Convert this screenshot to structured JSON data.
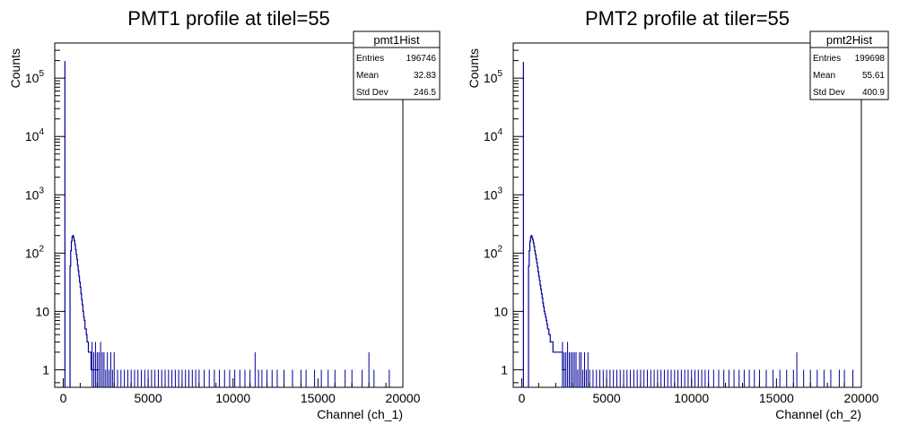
{
  "chart_data": [
    {
      "type": "bar",
      "title": "PMT1 profile at tilel=55",
      "xlabel": "Channel (ch_1)",
      "ylabel": "Counts",
      "xlim": [
        -500,
        20000
      ],
      "ylim": [
        0.5,
        400000
      ],
      "yscale": "log",
      "grid": false,
      "x_ticks": [
        "0",
        "5000",
        "10000",
        "15000",
        "20000"
      ],
      "y_ticks": [
        {
          "base": "1",
          "exp": ""
        },
        {
          "base": "10",
          "exp": ""
        },
        {
          "base": "10",
          "exp": "2"
        },
        {
          "base": "10",
          "exp": "3"
        },
        {
          "base": "10",
          "exp": "4"
        },
        {
          "base": "10",
          "exp": "5"
        }
      ],
      "line_color": "#000099",
      "stats_box": {
        "name": "pmt1Hist",
        "rows": [
          {
            "label": "Entries",
            "value": "196746"
          },
          {
            "label": "Mean",
            "value": "32.83"
          },
          {
            "label": "Std Dev",
            "value": "246.5"
          }
        ]
      },
      "pedestal": {
        "x": 100,
        "y": 196000
      },
      "peak": {
        "x_start": 400,
        "x_peak": 560,
        "y_peak": 200
      },
      "x": [
        400,
        440,
        480,
        520,
        560,
        600,
        640,
        680,
        720,
        760,
        800,
        840,
        880,
        920,
        960,
        1000,
        1040,
        1080,
        1120,
        1160,
        1200,
        1240,
        1280,
        1320,
        1360,
        1400,
        1440,
        1480,
        1520,
        1560,
        1600,
        1640,
        1680,
        1720,
        1760,
        1800,
        1840,
        1880,
        1920,
        1960,
        2000
      ],
      "y": [
        60,
        110,
        160,
        190,
        200,
        185,
        165,
        140,
        115,
        95,
        78,
        62,
        50,
        40,
        32,
        26,
        20,
        16,
        13,
        10,
        8,
        7,
        5,
        5,
        4,
        3,
        3,
        2,
        2,
        2,
        2,
        1,
        1,
        1,
        1,
        1,
        1,
        1,
        1,
        1,
        1
      ],
      "tail_x": [
        1700,
        1800,
        1900,
        2000,
        2100,
        2200,
        2300,
        2400,
        2500,
        2600,
        2700,
        2800,
        2900,
        3000,
        3200,
        3400,
        3600,
        3800,
        4000,
        4200,
        4400,
        4600,
        4800,
        5000,
        5200,
        5400,
        5600,
        5800,
        6000,
        6200,
        6400,
        6600,
        6800,
        7000,
        7200,
        7400,
        7600,
        7800,
        8000,
        8300,
        8600,
        8900,
        9200,
        9500,
        9800,
        10100,
        10400,
        10700,
        11000,
        11300,
        11500,
        11700,
        12000,
        12300,
        12600,
        13000,
        13500,
        14000,
        14300,
        14800,
        15200,
        15600,
        16000,
        16600,
        17000,
        17600,
        18000,
        18300,
        19200
      ],
      "tail_y": [
        3,
        2,
        3,
        2,
        2,
        3,
        2,
        2,
        1,
        2,
        1,
        2,
        1,
        2,
        1,
        1,
        1,
        1,
        1,
        1,
        1,
        1,
        1,
        1,
        1,
        1,
        1,
        1,
        1,
        1,
        1,
        1,
        1,
        1,
        1,
        1,
        1,
        1,
        1,
        1,
        1,
        1,
        1,
        1,
        1,
        1,
        1,
        1,
        1,
        2,
        1,
        1,
        1,
        1,
        1,
        1,
        1,
        1,
        1,
        1,
        1,
        1,
        1,
        1,
        1,
        1,
        2,
        1,
        1
      ]
    },
    {
      "type": "bar",
      "title": "PMT2 profile at tiler=55",
      "xlabel": "Channel (ch_2)",
      "ylabel": "Counts",
      "xlim": [
        -500,
        20000
      ],
      "ylim": [
        0.5,
        400000
      ],
      "yscale": "log",
      "grid": false,
      "x_ticks": [
        "0",
        "5000",
        "10000",
        "15000",
        "20000"
      ],
      "y_ticks": [
        {
          "base": "1",
          "exp": ""
        },
        {
          "base": "10",
          "exp": ""
        },
        {
          "base": "10",
          "exp": "2"
        },
        {
          "base": "10",
          "exp": "3"
        },
        {
          "base": "10",
          "exp": "4"
        },
        {
          "base": "10",
          "exp": "5"
        }
      ],
      "line_color": "#000099",
      "stats_box": {
        "name": "pmt2Hist",
        "rows": [
          {
            "label": "Entries",
            "value": "199698"
          },
          {
            "label": "Mean",
            "value": "55.61"
          },
          {
            "label": "Std Dev",
            "value": "400.9"
          }
        ]
      },
      "pedestal": {
        "x": 100,
        "y": 190000
      },
      "peak": {
        "x_start": 400,
        "x_peak": 560,
        "y_peak": 200
      },
      "x": [
        400,
        440,
        480,
        520,
        560,
        600,
        640,
        680,
        720,
        760,
        800,
        840,
        880,
        920,
        960,
        1000,
        1040,
        1080,
        1120,
        1160,
        1200,
        1240,
        1280,
        1320,
        1360,
        1400,
        1440,
        1480,
        1520,
        1560,
        1600,
        1640,
        1680,
        1720,
        1760,
        1800,
        1840,
        1880,
        1920,
        1960,
        2000,
        2100,
        2200,
        2300,
        2400,
        2500
      ],
      "y": [
        60,
        110,
        160,
        190,
        200,
        185,
        170,
        150,
        130,
        110,
        95,
        80,
        68,
        58,
        48,
        40,
        34,
        28,
        24,
        20,
        17,
        14,
        12,
        10,
        9,
        8,
        7,
        6,
        5,
        5,
        4,
        4,
        3,
        3,
        3,
        3,
        2,
        2,
        2,
        2,
        2,
        2,
        2,
        2,
        1,
        1
      ],
      "tail_x": [
        2400,
        2500,
        2600,
        2700,
        2800,
        2900,
        3000,
        3100,
        3200,
        3300,
        3400,
        3500,
        3600,
        3700,
        3800,
        3900,
        4000,
        4200,
        4400,
        4600,
        4800,
        5000,
        5200,
        5400,
        5600,
        5800,
        6000,
        6200,
        6400,
        6600,
        6800,
        7000,
        7200,
        7400,
        7600,
        7800,
        8000,
        8200,
        8400,
        8600,
        8800,
        9000,
        9200,
        9400,
        9600,
        9800,
        10000,
        10200,
        10400,
        10600,
        10800,
        11000,
        11300,
        11600,
        11900,
        12200,
        12500,
        12800,
        13100,
        13400,
        13700,
        14000,
        14400,
        14800,
        15200,
        15600,
        16000,
        16200,
        16600,
        17000,
        17400,
        17800,
        18200,
        18700,
        19000,
        19500
      ],
      "tail_y": [
        3,
        2,
        2,
        3,
        2,
        2,
        2,
        2,
        2,
        1,
        2,
        2,
        1,
        2,
        1,
        2,
        1,
        1,
        1,
        1,
        1,
        1,
        1,
        1,
        1,
        1,
        1,
        1,
        1,
        1,
        1,
        1,
        1,
        1,
        1,
        1,
        1,
        1,
        1,
        1,
        1,
        1,
        1,
        1,
        1,
        1,
        1,
        1,
        1,
        1,
        1,
        1,
        1,
        1,
        1,
        1,
        1,
        1,
        1,
        1,
        1,
        1,
        1,
        1,
        1,
        1,
        1,
        2,
        1,
        1,
        1,
        1,
        1,
        1,
        1,
        1
      ]
    }
  ]
}
